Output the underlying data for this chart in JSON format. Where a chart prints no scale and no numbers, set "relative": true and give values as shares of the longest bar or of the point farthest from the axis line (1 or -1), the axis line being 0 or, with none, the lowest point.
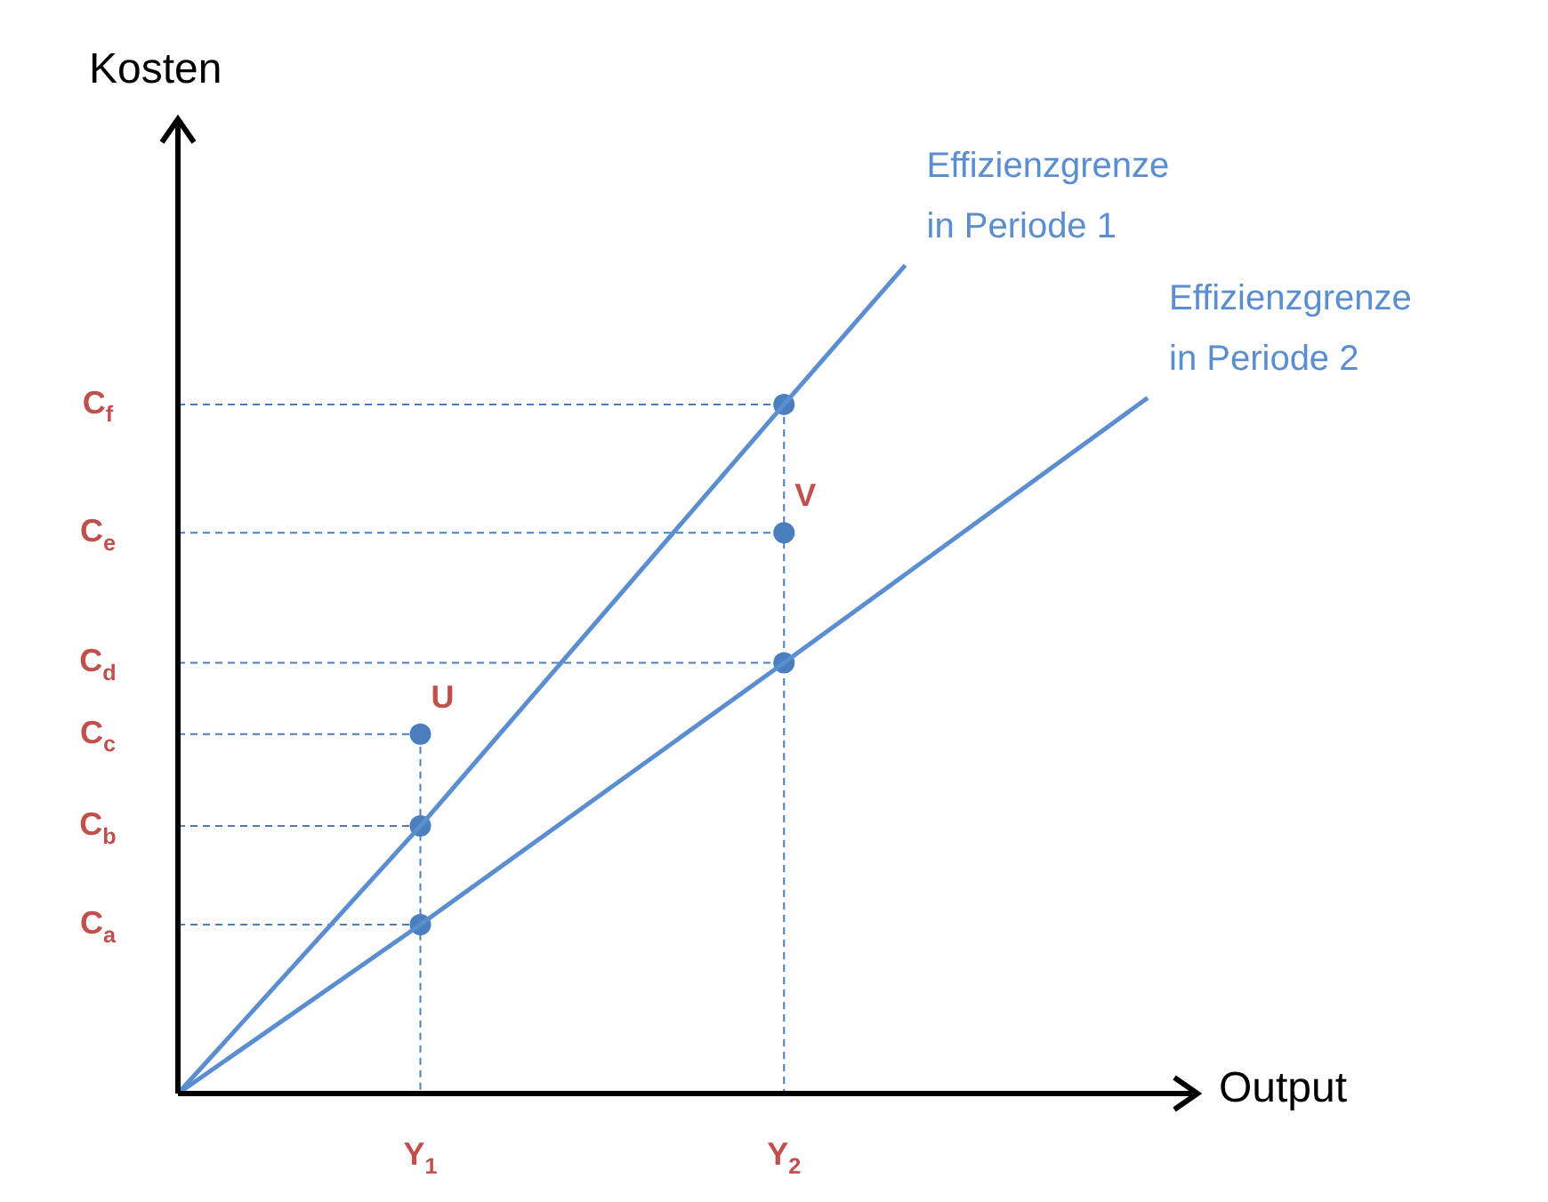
{
  "chart_data": {
    "type": "line",
    "relative": true,
    "ylabel": "Kosten",
    "xlabel": "Output",
    "legend": false,
    "categories": [
      null,
      null,
      "Y$_{1}$",
      null,
      null,
      "Y$_{2}$",
      null,
      null,
      null
    ],
    "series": [
      {
        "name": "Effizienzgrenze in Periode 1",
        "type": "line",
        "color": "#5b8ed0",
        "values": [
          0,
          null,
          0.323,
          null,
          null,
          0.832,
          1,
          null,
          null
        ],
        "marker": "none"
      },
      {
        "name": "Effizienzgrenze in Periode 2",
        "type": "line",
        "color": "#5b8ed0",
        "values": [
          0,
          null,
          0.204,
          null,
          null,
          0.52,
          null,
          null,
          0.84
        ],
        "marker": "none"
      },
      {
        "type": "scatter",
        "color": "#4a7ebf",
        "values": [
          null,
          null,
          0.204,
          null,
          null,
          0.52,
          null,
          null,
          null
        ],
        "marker": "circle"
      },
      {
        "type": "scatter",
        "color": "#4a7ebf",
        "values": [
          null,
          null,
          0.323,
          null,
          null,
          0.677,
          null,
          null,
          null
        ],
        "marker": "circle"
      },
      {
        "type": "scatter",
        "color": "#4a7ebf",
        "values": [
          null,
          null,
          0.434,
          null,
          null,
          0.832,
          null,
          null,
          null
        ],
        "marker": "circle"
      }
    ],
    "ref_lines": [
      {
        "axis": "y",
        "value": 0.204,
        "label": "C$_{a}$",
        "color": "#4a7ebf",
        "line_style": "dashed"
      },
      {
        "axis": "y",
        "value": 0.323,
        "label": "C$_{b}$",
        "color": "#4a7ebf",
        "line_style": "dashed"
      },
      {
        "axis": "y",
        "value": 0.434,
        "label": "C$_{c}$",
        "color": "#4a7ebf",
        "line_style": "dashed"
      },
      {
        "axis": "y",
        "value": 0.52,
        "label": "C$_{d}$",
        "color": "#4a7ebf",
        "line_style": "dashed"
      },
      {
        "axis": "y",
        "value": 0.677,
        "label": "C$_{e}$",
        "color": "#4a7ebf",
        "line_style": "dashed"
      },
      {
        "axis": "y",
        "value": 0.832,
        "label": "C$_{f}$",
        "color": "#4a7ebf",
        "line_style": "dashed"
      }
    ],
    "annotations": [
      {
        "text": "U",
        "x": "Y$_{1}$",
        "y": 0.434
      },
      {
        "text": "V",
        "x": "Y$_{2}$",
        "y": 0.677
      }
    ]
  }
}
